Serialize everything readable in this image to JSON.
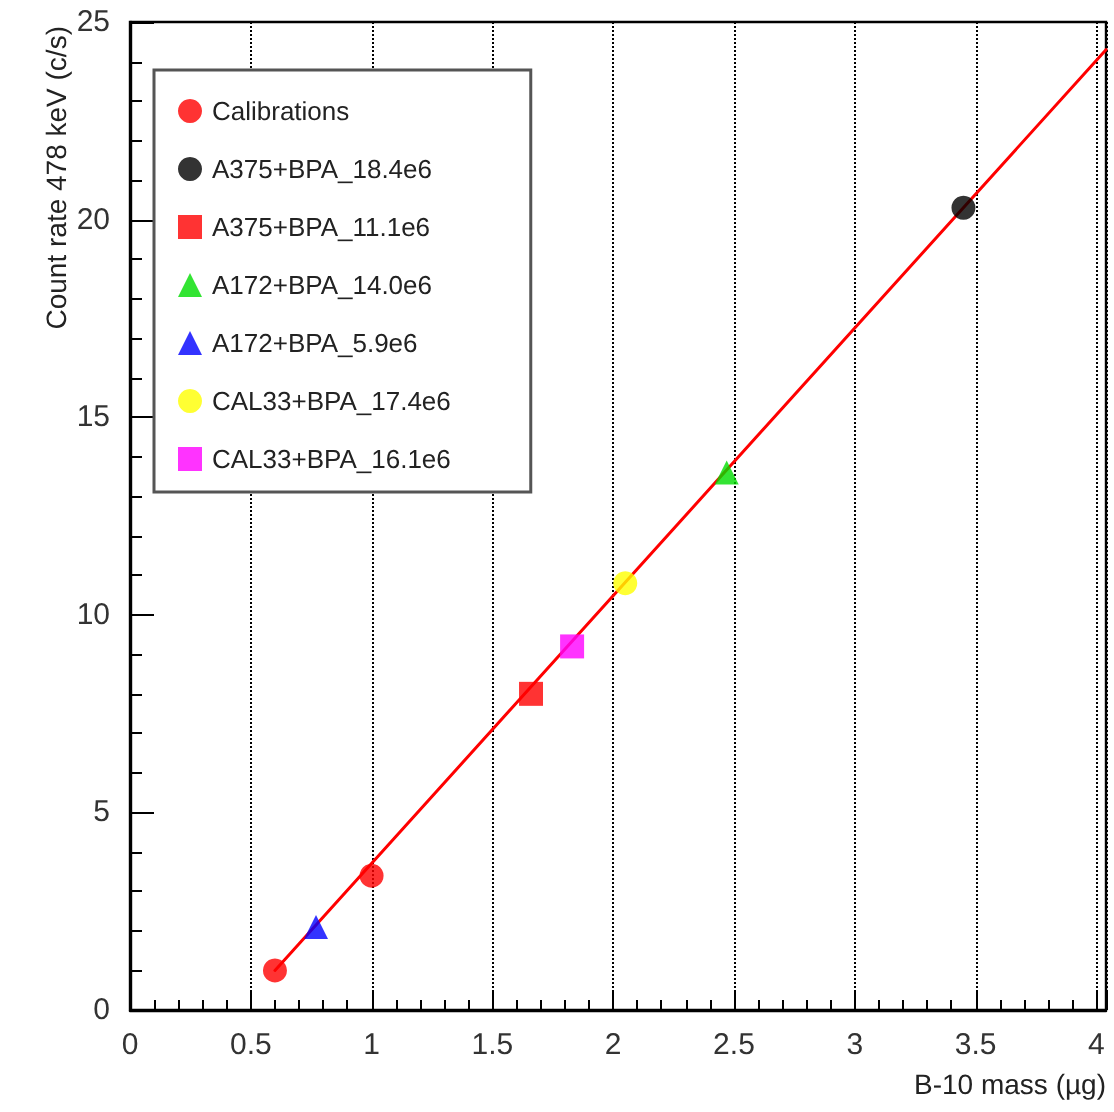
{
  "chart_data": {
    "type": "scatter",
    "xlabel": "B-10 mass (µg)",
    "ylabel": "Count rate 478 keV (c/s)",
    "xlim": [
      0,
      4.04
    ],
    "xticks": [
      0,
      0.5,
      1,
      1.5,
      2,
      2.5,
      3,
      3.5,
      4
    ],
    "ylim": [
      0,
      25
    ],
    "yticks": [
      0,
      5,
      10,
      15,
      20,
      25
    ],
    "grid": "x",
    "legend": "top left",
    "series": [
      {
        "name": "Calibrations",
        "color": "#ff0000",
        "marker": "circle",
        "x": [
          0.6,
          1.0
        ],
        "values": [
          1.0,
          3.4
        ]
      },
      {
        "name": "A375+BPA_18.4e6",
        "color": "#000000",
        "marker": "circle",
        "x": [
          3.45
        ],
        "values": [
          20.3
        ]
      },
      {
        "name": "A375+BPA_11.1e6",
        "color": "#ff0000",
        "marker": "square",
        "x": [
          1.66
        ],
        "values": [
          8.0
        ]
      },
      {
        "name": "A172+BPA_14.0e6",
        "color": "#00dd00",
        "marker": "triangle",
        "x": [
          2.47
        ],
        "values": [
          13.6
        ]
      },
      {
        "name": "A172+BPA_5.9e6",
        "color": "#0000ff",
        "marker": "triangle",
        "x": [
          0.77
        ],
        "values": [
          2.1
        ]
      },
      {
        "name": "CAL33+BPA_17.4e6",
        "color": "#ffff00",
        "marker": "circle",
        "x": [
          2.05
        ],
        "values": [
          10.8
        ]
      },
      {
        "name": "CAL33+BPA_16.1e6",
        "color": "#ff00ff",
        "marker": "square",
        "x": [
          1.83
        ],
        "values": [
          9.2
        ]
      },
      {
        "type": "line",
        "color": "#ff0000",
        "marker": "none",
        "x": [
          0.6,
          4.04
        ],
        "values": [
          1.0,
          24.3
        ]
      }
    ]
  }
}
